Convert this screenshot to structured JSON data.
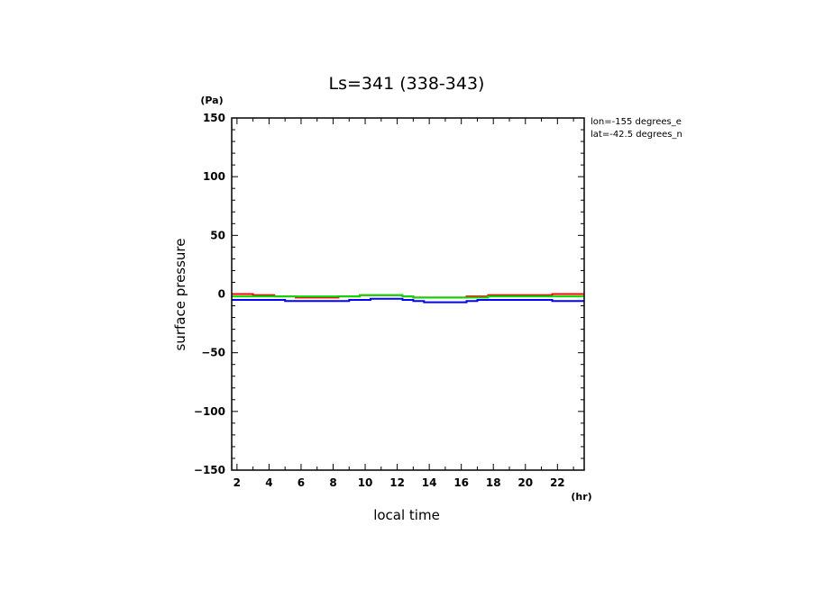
{
  "chart_data": {
    "type": "line",
    "title": "Ls=341 (338-343)",
    "xlabel": "local time",
    "ylabel": "surface pressure",
    "x_unit": "(hr)",
    "y_unit": "(Pa)",
    "xlim": [
      1.67,
      23.67
    ],
    "ylim": [
      -150,
      150
    ],
    "x_ticks": [
      2,
      4,
      6,
      8,
      10,
      12,
      14,
      16,
      18,
      20,
      22
    ],
    "y_ticks": [
      150,
      100,
      50,
      0,
      -50,
      -100,
      -150
    ],
    "x_tick_labels": [
      "2",
      "4",
      "6",
      "8",
      "10",
      "12",
      "14",
      "16",
      "18",
      "20",
      "22"
    ],
    "y_tick_labels": [
      "150",
      "100",
      "50",
      "0",
      "−50",
      "−100",
      "−150"
    ],
    "annotations": [
      "lon=-155 degrees_e",
      "lat=-42.5 degrees_n"
    ],
    "grid": false,
    "x": [
      1.67,
      2.33,
      3,
      3.67,
      4.33,
      5,
      5.67,
      6.33,
      7,
      7.67,
      8.33,
      9,
      9.67,
      10.33,
      11,
      11.67,
      12.33,
      13,
      13.67,
      14.33,
      15,
      15.67,
      16.33,
      17,
      17.67,
      18.33,
      19,
      19.67,
      20.33,
      21,
      21.67,
      22.33,
      23,
      23.67
    ],
    "series": [
      {
        "color": "#ff0000",
        "values": [
          0,
          0,
          -1,
          -1,
          -2,
          -2,
          -3,
          -3,
          -3,
          -3,
          -2,
          -2,
          -1,
          -1,
          -1,
          -1,
          -2,
          -3,
          -3,
          -3,
          -3,
          -3,
          -2,
          -2,
          -1,
          -1,
          -1,
          -1,
          -1,
          -1,
          0,
          0,
          0,
          0
        ]
      },
      {
        "color": "#00dd00",
        "values": [
          -2,
          -2,
          -2,
          -2,
          -2,
          -2,
          -2,
          -2,
          -2,
          -2,
          -2,
          -2,
          -1,
          -1,
          -1,
          -1,
          -2,
          -3,
          -3,
          -3,
          -3,
          -3,
          -3,
          -3,
          -2,
          -2,
          -2,
          -2,
          -2,
          -2,
          -2,
          -2,
          -2,
          -2
        ]
      },
      {
        "color": "#0000ff",
        "values": [
          -5,
          -5,
          -5,
          -5,
          -5,
          -6,
          -6,
          -6,
          -6,
          -6,
          -6,
          -5,
          -5,
          -4,
          -4,
          -4,
          -5,
          -6,
          -7,
          -7,
          -7,
          -7,
          -6,
          -5,
          -5,
          -5,
          -5,
          -5,
          -5,
          -5,
          -6,
          -6,
          -6,
          -6
        ]
      }
    ]
  }
}
